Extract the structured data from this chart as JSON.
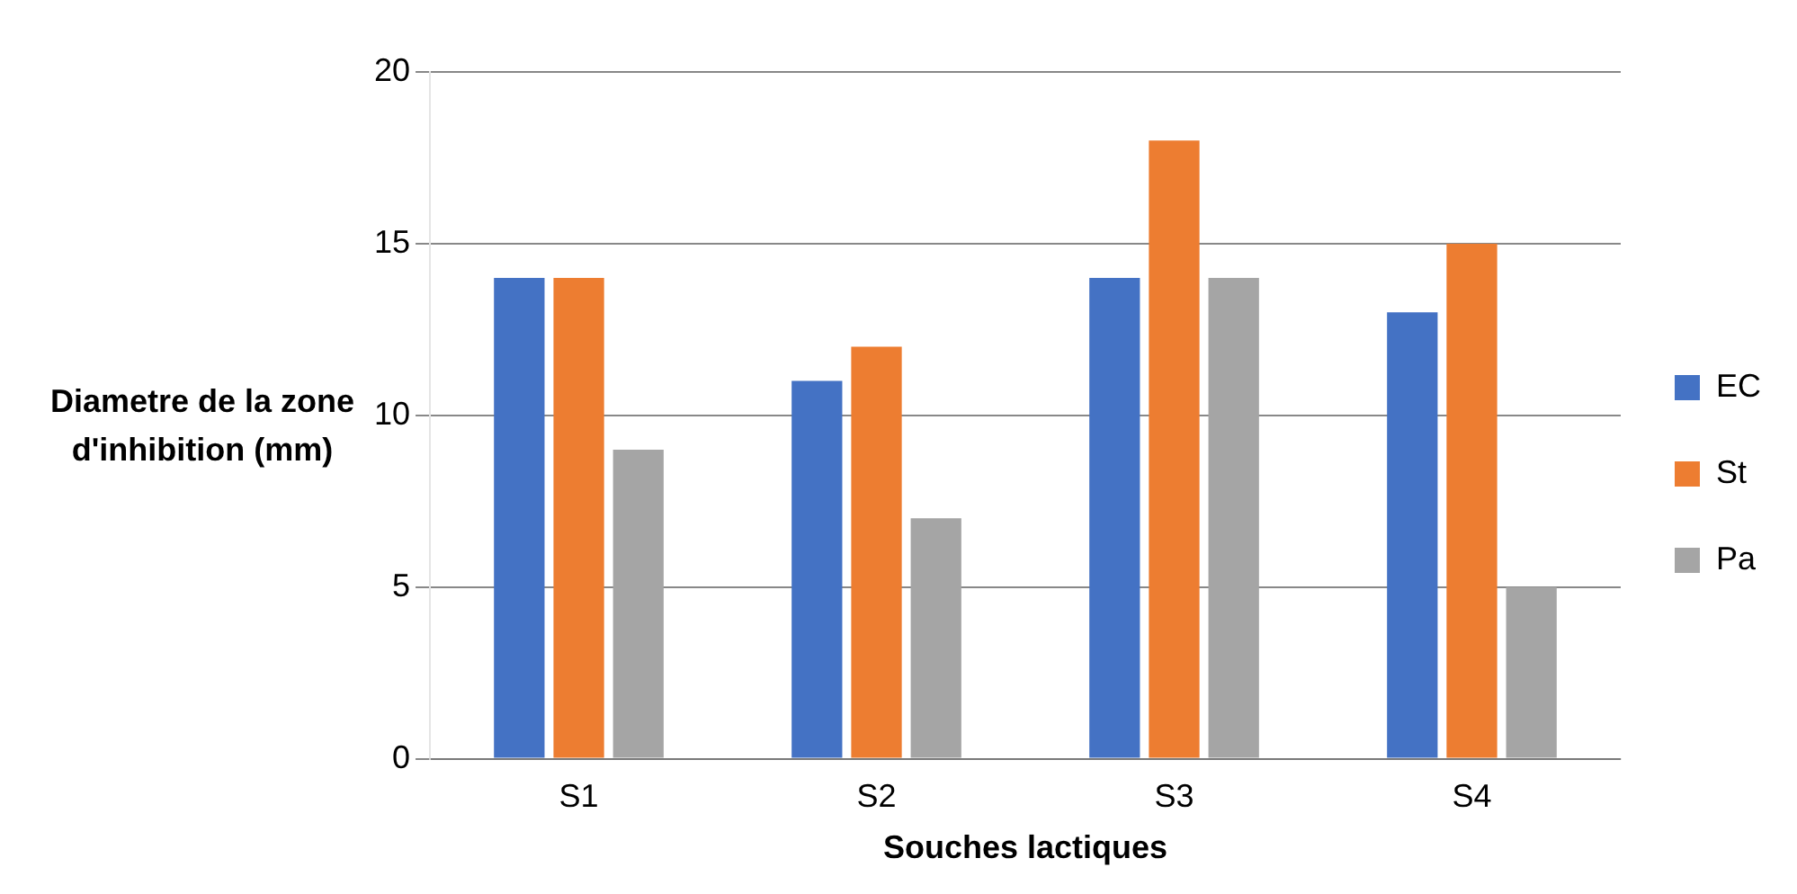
{
  "chart_data": {
    "type": "bar",
    "xlabel": "Souches lactiques",
    "ylabel": "Diametre  de la zone d'inhibition (mm)",
    "categories": [
      "S1",
      "S2",
      "S3",
      "S4"
    ],
    "series": [
      {
        "name": "EC",
        "color": "#4472c4",
        "values": [
          14,
          11,
          14,
          13
        ]
      },
      {
        "name": "St",
        "color": "#ed7d31",
        "values": [
          14,
          12,
          18,
          15
        ]
      },
      {
        "name": "Pa",
        "color": "#a5a5a5",
        "values": [
          9,
          7,
          14,
          5
        ]
      }
    ],
    "ylim": [
      0,
      20
    ],
    "yticks": [
      0,
      5,
      10,
      15,
      20
    ],
    "grid": "y",
    "legend": "right"
  }
}
